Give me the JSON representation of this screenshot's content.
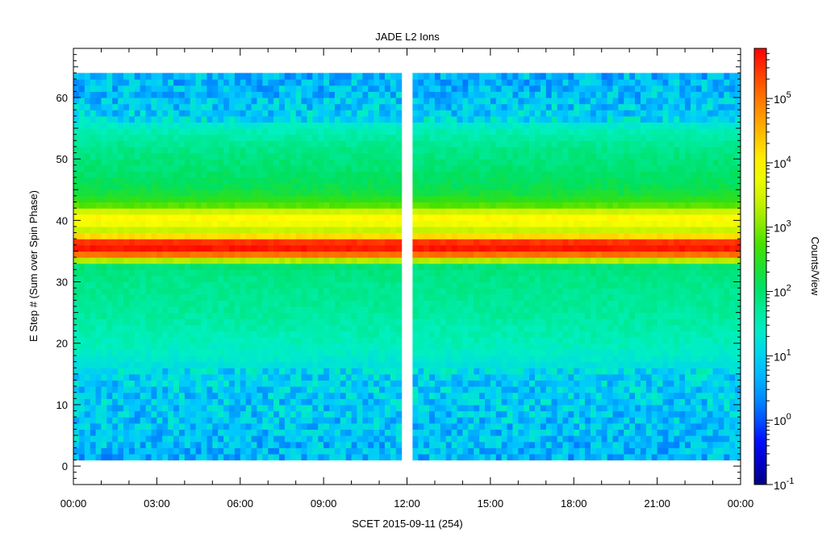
{
  "chart_data": {
    "type": "heatmap",
    "title": "JADE L2 Ions",
    "xlabel": "SCET 2015-09-11 (254)",
    "ylabel": "E Step # (Sum over Spin Phase)",
    "colorbar_label": "Counts/View",
    "x_range": [
      "00:00",
      "24:00"
    ],
    "x_tick_labels": [
      "00:00",
      "03:00",
      "06:00",
      "09:00",
      "12:00",
      "15:00",
      "18:00",
      "21:00",
      "00:00"
    ],
    "x_tick_hours": [
      0,
      3,
      6,
      9,
      12,
      15,
      18,
      21,
      24
    ],
    "ylim": [
      -3,
      68
    ],
    "y_ticks": [
      0,
      10,
      20,
      30,
      40,
      50,
      60
    ],
    "y_tick_labels": [
      "0",
      "10",
      "20",
      "30",
      "40",
      "50",
      "60"
    ],
    "data_y_range": [
      1,
      64
    ],
    "data_gaps_hours": [
      [
        11.85,
        12.15
      ]
    ],
    "color_scale": "log",
    "color_range": [
      0.1,
      600000
    ],
    "colorbar_ticks": [
      {
        "base": "10",
        "exp": "-1",
        "value": 0.1
      },
      {
        "base": "10",
        "exp": "0",
        "value": 1
      },
      {
        "base": "10",
        "exp": "1",
        "value": 10
      },
      {
        "base": "10",
        "exp": "2",
        "value": 100
      },
      {
        "base": "10",
        "exp": "3",
        "value": 1000
      },
      {
        "base": "10",
        "exp": "4",
        "value": 10000
      },
      {
        "base": "10",
        "exp": "5",
        "value": 100000
      }
    ],
    "colormap": [
      "#000080",
      "#0000ff",
      "#0080ff",
      "#00c8ff",
      "#00f0c0",
      "#00e060",
      "#40e000",
      "#c0f000",
      "#ffff00",
      "#ffb000",
      "#ff6000",
      "#ff0000"
    ],
    "energy_profile_log10": [
      [
        1,
        0.7
      ],
      [
        5,
        0.8
      ],
      [
        10,
        0.9
      ],
      [
        15,
        1.0
      ],
      [
        17,
        1.3
      ],
      [
        20,
        1.5
      ],
      [
        25,
        1.7
      ],
      [
        30,
        1.8
      ],
      [
        33,
        1.95
      ],
      [
        34,
        4.5
      ],
      [
        35,
        5.6
      ],
      [
        36,
        5.7
      ],
      [
        37,
        5.2
      ],
      [
        38,
        3.2
      ],
      [
        39,
        3.6
      ],
      [
        40,
        4.0
      ],
      [
        41,
        3.9
      ],
      [
        42,
        3.0
      ],
      [
        43,
        2.6
      ],
      [
        45,
        2.2
      ],
      [
        48,
        2.0
      ],
      [
        52,
        1.8
      ],
      [
        55,
        1.5
      ],
      [
        57,
        1.0
      ],
      [
        60,
        0.8
      ],
      [
        64,
        0.7
      ]
    ]
  }
}
